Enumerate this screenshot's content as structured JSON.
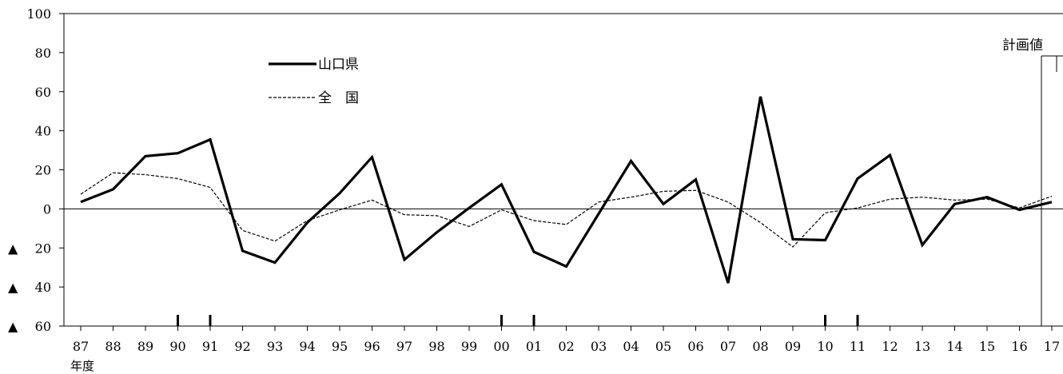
{
  "chart_data": {
    "type": "line",
    "x_label": "年度",
    "x": [
      "87",
      "88",
      "89",
      "90",
      "91",
      "92",
      "93",
      "94",
      "95",
      "96",
      "97",
      "98",
      "99",
      "00",
      "01",
      "02",
      "03",
      "04",
      "05",
      "06",
      "07",
      "08",
      "09",
      "10",
      "11",
      "12",
      "13",
      "14",
      "15",
      "16",
      "17"
    ],
    "y_ticks": [
      {
        "value": 100,
        "label": "100"
      },
      {
        "value": 80,
        "label": "80"
      },
      {
        "value": 60,
        "label": "60"
      },
      {
        "value": 40,
        "label": "40"
      },
      {
        "value": 20,
        "label": "20"
      },
      {
        "value": 0,
        "label": "0"
      },
      {
        "value": -20,
        "label": "▲ 20"
      },
      {
        "value": -40,
        "label": "▲ 40"
      },
      {
        "value": -60,
        "label": "▲ 60"
      }
    ],
    "ylim": [
      -60,
      100
    ],
    "zero_line": true,
    "legend_position": "upper-left",
    "series": [
      {
        "name": "山口県",
        "style": "solid-thick",
        "color": "#000000",
        "values": [
          3.5,
          10,
          27,
          28.5,
          35.5,
          -21.5,
          -27.5,
          -7,
          8,
          26.5,
          -26,
          -12,
          0.5,
          12.5,
          -22,
          -29.5,
          -2.5,
          24.5,
          2.5,
          15,
          -38,
          57.5,
          -15.5,
          -16,
          15.5,
          27.5,
          -18.5,
          2.5,
          6,
          -0.5,
          3.5
        ]
      },
      {
        "name": "全　国",
        "style": "dashed",
        "color": "#000000",
        "values": [
          7.5,
          18.5,
          17.5,
          15.5,
          11,
          -11,
          -16.5,
          -6,
          -0.5,
          4.5,
          -3,
          -3.5,
          -9,
          -0.5,
          -6,
          -8,
          3.5,
          6,
          9,
          9.5,
          3.5,
          -7,
          -19.5,
          -2,
          0.5,
          5,
          6,
          4.5,
          5,
          0.5,
          6.5
        ]
      }
    ],
    "boundary_marks_after": [
      "90",
      "91",
      "00",
      "01",
      "10",
      "11"
    ],
    "annotation": {
      "text": "計画値",
      "at": "17"
    }
  }
}
